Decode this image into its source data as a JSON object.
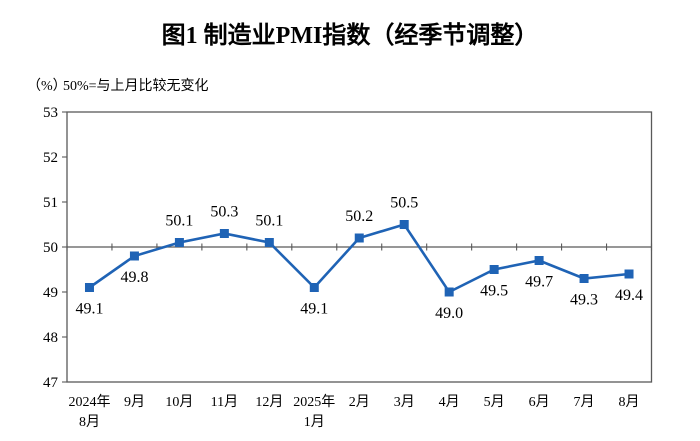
{
  "page": {
    "background": "#ffffff"
  },
  "colors": {
    "line": "#1F63B5",
    "marker": "#1F63B5",
    "axis": "#595959",
    "text": "#000000"
  },
  "chart_data": {
    "type": "line",
    "title": "图1 制造业PMI指数（经季节调整）",
    "unit_label": "（%）",
    "note": "50%=与上月比较无变化",
    "categories": [
      "2024年\n8月",
      "9月",
      "10月",
      "11月",
      "12月",
      "2025年\n1月",
      "2月",
      "3月",
      "4月",
      "5月",
      "6月",
      "7月",
      "8月"
    ],
    "values": [
      49.1,
      49.8,
      50.1,
      50.3,
      50.1,
      49.1,
      50.2,
      50.5,
      49.0,
      49.5,
      49.7,
      49.3,
      49.4
    ],
    "yticks": [
      47,
      48,
      49,
      50,
      51,
      52,
      53
    ],
    "ylim": [
      47,
      53
    ],
    "reference_line": 50,
    "data_label_decimals": 1,
    "marker": "square",
    "legend": "none",
    "grid": false
  }
}
